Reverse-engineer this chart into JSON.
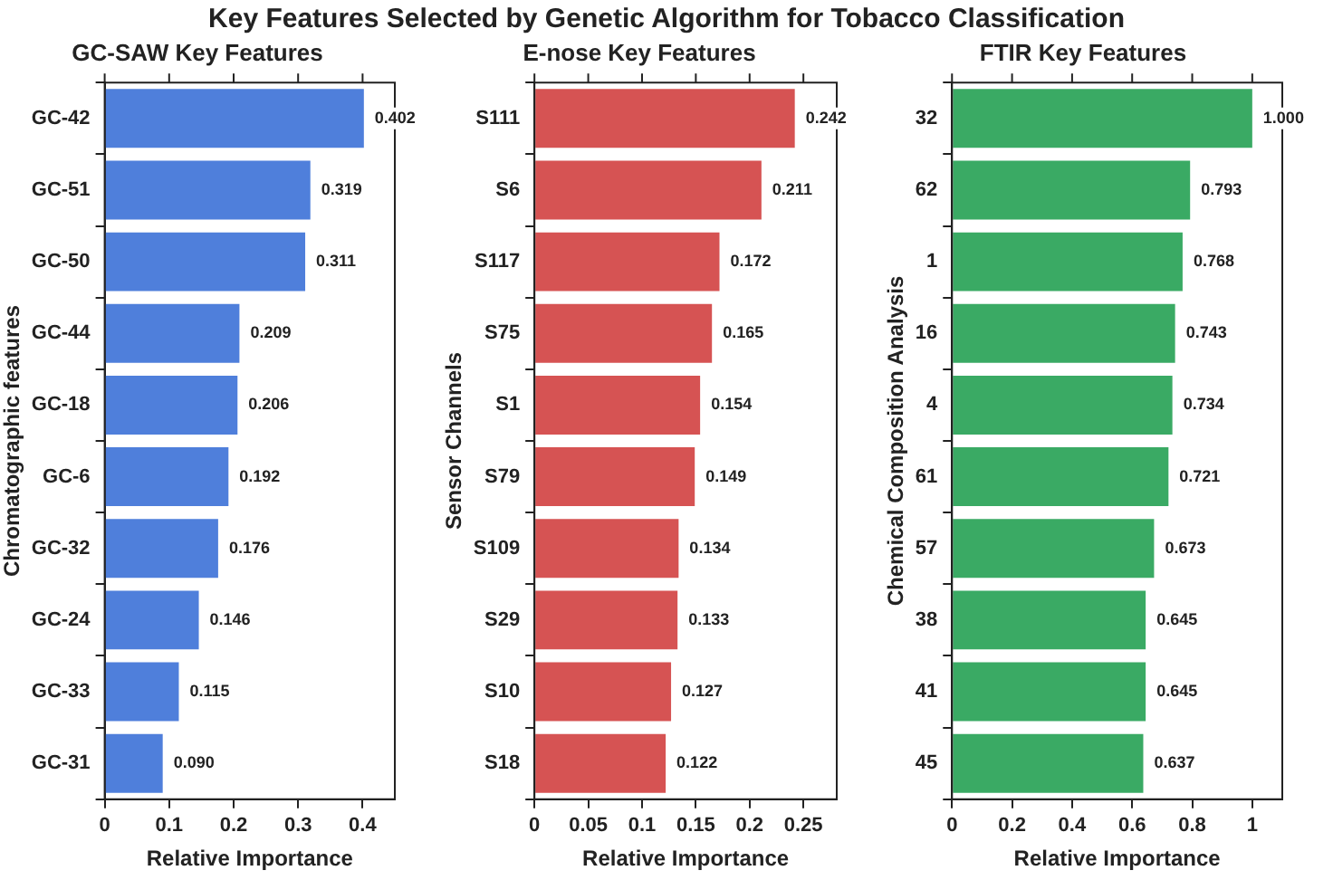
{
  "chart_data": [
    {
      "type": "bar",
      "orientation": "horizontal",
      "title": "GC-SAW Key Features",
      "annotations": [
        "Key Features Selected by Genetic Algorithm for Tobacco Classification"
      ],
      "xlabel": "Relative Importance",
      "ylabel": "Chromatographic features",
      "categories": [
        "GC-42",
        "GC-51",
        "GC-50",
        "GC-44",
        "GC-18",
        "GC-6",
        "GC-32",
        "GC-24",
        "GC-33",
        "GC-31"
      ],
      "values": [
        0.402,
        0.319,
        0.311,
        0.209,
        0.206,
        0.192,
        0.176,
        0.146,
        0.115,
        0.09
      ],
      "value_labels": [
        "0.402",
        "0.319",
        "0.311",
        "0.209",
        "0.206",
        "0.192",
        "0.176",
        "0.146",
        "0.115",
        "0.090"
      ],
      "color": "#4f7fdb",
      "xlim": [
        0,
        0.45
      ],
      "xticks": [
        0,
        0.1,
        0.2,
        0.3,
        0.4
      ],
      "grid": false,
      "legend": false
    },
    {
      "type": "bar",
      "orientation": "horizontal",
      "title": "E-nose Key Features",
      "xlabel": "Relative Importance",
      "ylabel": "Sensor Channels",
      "categories": [
        "S111",
        "S6",
        "S117",
        "S75",
        "S1",
        "S79",
        "S109",
        "S29",
        "S10",
        "S18"
      ],
      "values": [
        0.242,
        0.211,
        0.172,
        0.165,
        0.154,
        0.149,
        0.134,
        0.133,
        0.127,
        0.122
      ],
      "value_labels": [
        "0.242",
        "0.211",
        "0.172",
        "0.165",
        "0.154",
        "0.149",
        "0.134",
        "0.133",
        "0.127",
        "0.122"
      ],
      "color": "#d65353",
      "xlim": [
        0,
        0.281
      ],
      "xticks": [
        0,
        0.05,
        0.1,
        0.15,
        0.2,
        0.25
      ],
      "grid": false,
      "legend": false
    },
    {
      "type": "bar",
      "orientation": "horizontal",
      "title": "FTIR Key Features",
      "xlabel": "Relative Importance",
      "ylabel": "Chemical Composition Analysis",
      "categories": [
        "32",
        "62",
        "1",
        "16",
        "4",
        "61",
        "57",
        "38",
        "41",
        "45"
      ],
      "values": [
        1.0,
        0.793,
        0.768,
        0.743,
        0.734,
        0.721,
        0.673,
        0.645,
        0.645,
        0.637
      ],
      "value_labels": [
        "1.000",
        "0.793",
        "0.768",
        "0.743",
        "0.734",
        "0.721",
        "0.673",
        "0.645",
        "0.645",
        "0.637"
      ],
      "color": "#3aaa64",
      "xlim": [
        0,
        1.1
      ],
      "xticks": [
        0,
        0.2,
        0.4,
        0.6,
        0.8,
        1
      ],
      "grid": false,
      "legend": false
    }
  ]
}
